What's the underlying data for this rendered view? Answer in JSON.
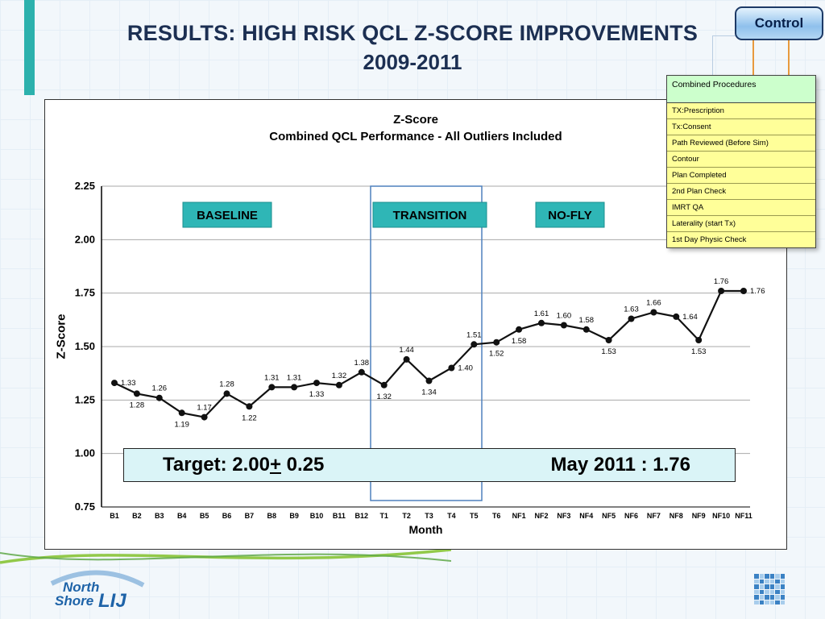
{
  "slide": {
    "title_line1": "RESULTS: HIGH RISK QCL Z-SCORE IMPROVEMENTS",
    "title_line2": "2009-2011",
    "control_button": "Control"
  },
  "legend": {
    "header": "Combined Procedures",
    "items": [
      "TX:Prescription",
      "Tx:Consent",
      "Path Reviewed (Before Sim)",
      "Contour",
      "Plan Completed",
      "2nd Plan Check",
      "IMRT QA",
      "Laterality (start Tx)",
      "1st Day Physic Check"
    ]
  },
  "chart_data": {
    "type": "line",
    "title_line1": "Z-Score",
    "title_line2": "Combined QCL Performance - All Outliers Included",
    "ylabel": "Z-Score",
    "xlabel": "Month",
    "ylim": [
      0.75,
      2.25
    ],
    "ytick_step": 0.25,
    "grid": true,
    "categories": [
      "B1",
      "B2",
      "B3",
      "B4",
      "B5",
      "B6",
      "B7",
      "B8",
      "B9",
      "B10",
      "B11",
      "B12",
      "T1",
      "T2",
      "T3",
      "T4",
      "T5",
      "T6",
      "NF1",
      "NF2",
      "NF3",
      "NF4",
      "NF5",
      "NF6",
      "NF7",
      "NF8",
      "NF9",
      "NF10",
      "NF11"
    ],
    "values": [
      1.33,
      1.28,
      1.26,
      1.19,
      1.17,
      1.28,
      1.22,
      1.31,
      1.31,
      1.33,
      1.32,
      1.38,
      1.32,
      1.44,
      1.34,
      1.4,
      1.51,
      1.52,
      1.58,
      1.61,
      1.6,
      1.58,
      1.53,
      1.63,
      1.66,
      1.64,
      1.53,
      1.76,
      1.76
    ],
    "label_positions": [
      "right",
      "below",
      "above",
      "below",
      "above",
      "above",
      "below",
      "above",
      "above",
      "below",
      "above",
      "above",
      "below",
      "above",
      "below",
      "right",
      "above",
      "below",
      "below",
      "above",
      "above",
      "above",
      "below",
      "above",
      "above",
      "right",
      "below",
      "above",
      "right"
    ],
    "regions": [
      {
        "label": "BASELINE"
      },
      {
        "label": "TRANSITION"
      },
      {
        "label": "NO-FLY"
      }
    ],
    "region_color": "#2fb6b6",
    "line_color": "#111111"
  },
  "target": {
    "left_prefix": "Target: 2.00",
    "plusminus": "+",
    "left_suffix": " 0.25",
    "right": "May 2011 : 1.76"
  },
  "logo": {
    "north": "North",
    "shore": "Shore",
    "lij": "LIJ"
  }
}
